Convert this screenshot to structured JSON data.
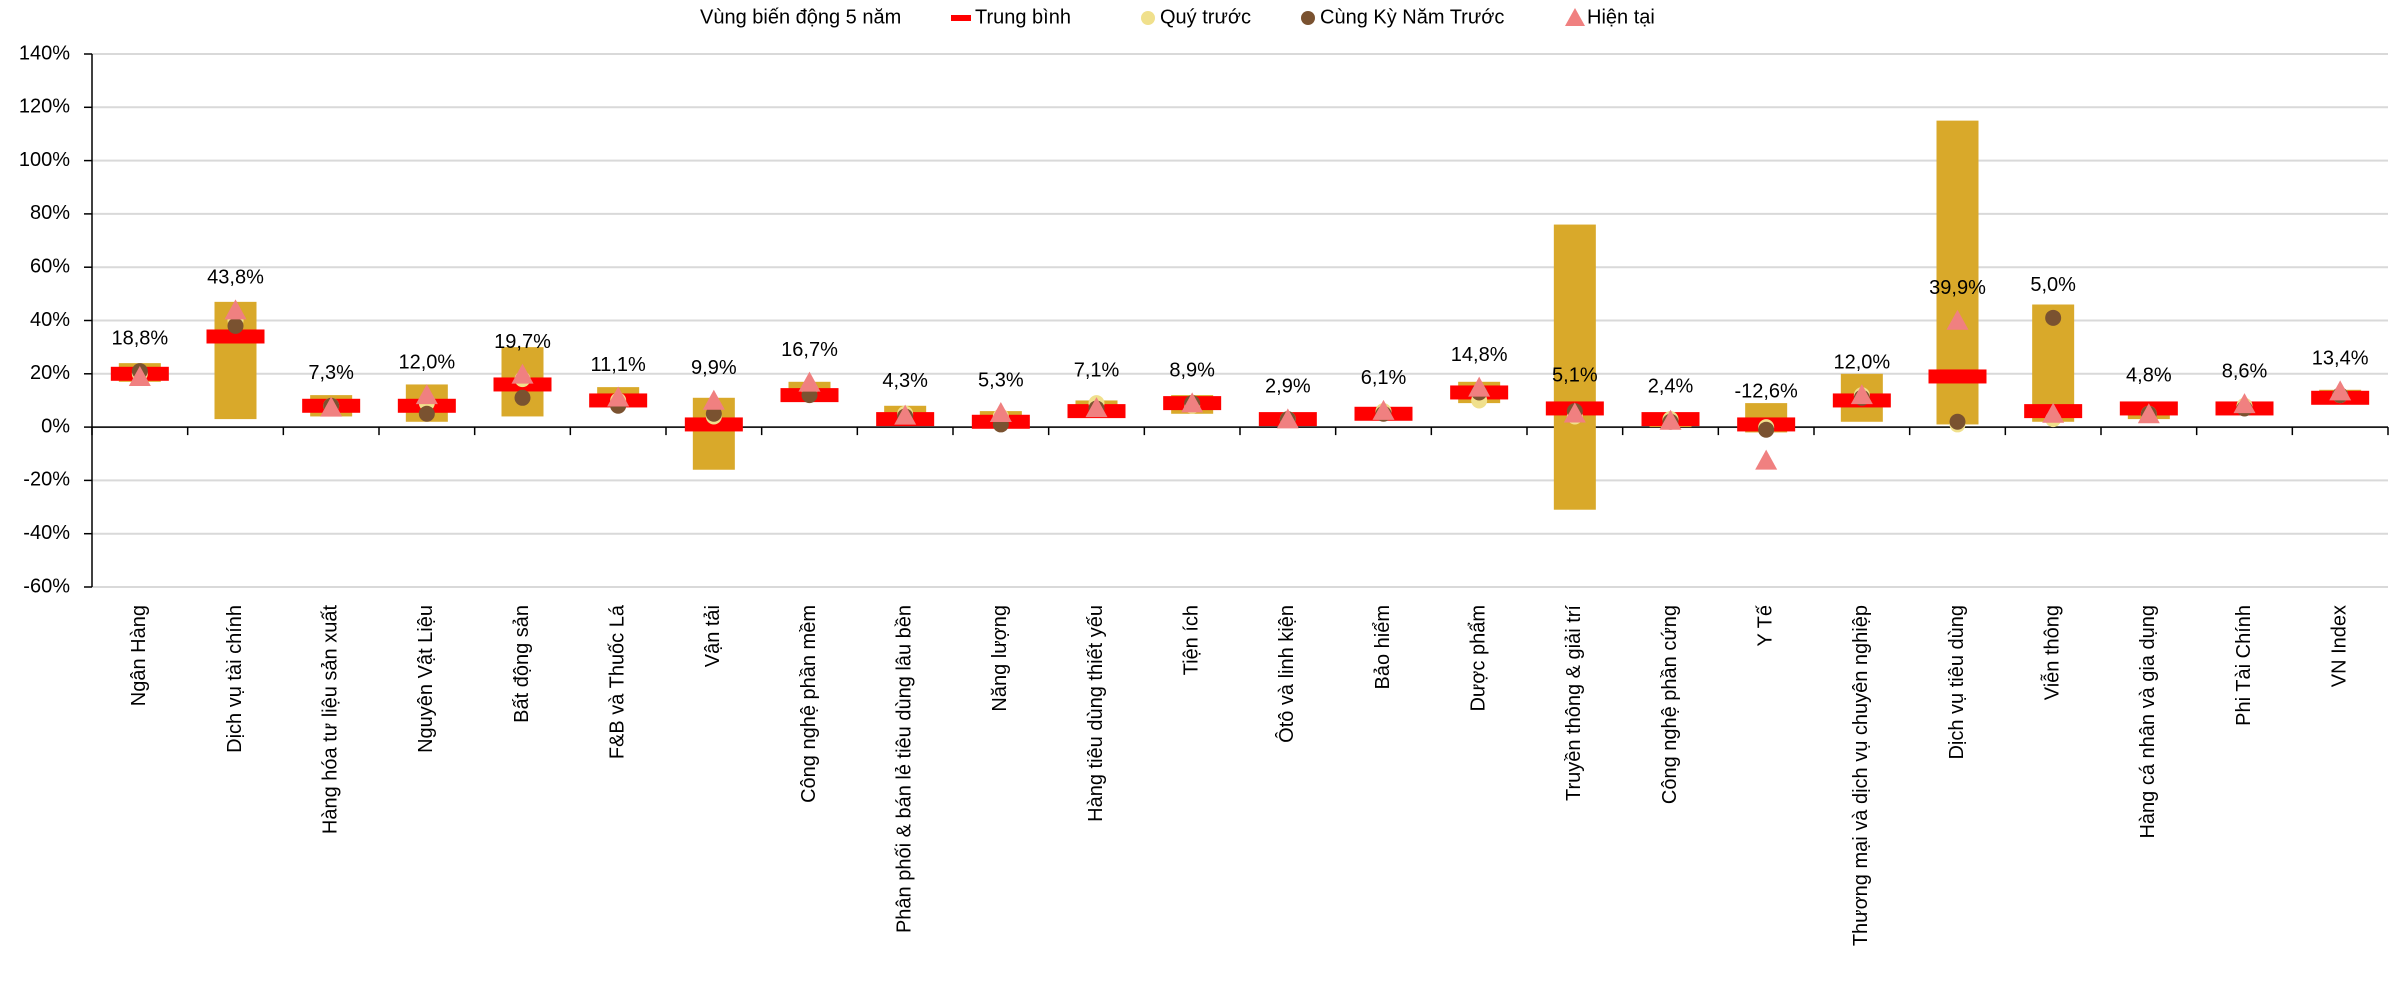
{
  "chart_data": {
    "type": "range-bar",
    "categories": [
      "Ngân Hàng",
      "Dịch vụ tài chính",
      "Hàng hóa tư liệu sản xuất",
      "Nguyên Vật Liệu",
      "Bất động sản",
      "F&B và Thuốc Lá",
      "Vận tải",
      "Công nghệ phần mềm",
      "Phân phối & bán lẻ tiêu dùng lâu bền",
      "Năng lượng",
      "Hàng tiêu dùng thiết yếu",
      "Tiện ích",
      "Ôtô và linh kiện",
      "Bảo hiểm",
      "Dược phẩm",
      "Truyền thông & giải trí",
      "Công nghệ phần cứng",
      "Y Tế",
      "Thương mại và dịch vụ chuyên nghiệp",
      "Dịch vụ tiêu dùng",
      "Viễn thông",
      "Hàng cá nhân và gia dụng",
      "Phi Tài Chính",
      "VN Index"
    ],
    "range": {
      "name": "Vùng biến động 5 năm",
      "color": "#d9a92a",
      "low": [
        17,
        3,
        4,
        2,
        4,
        8,
        -16,
        10,
        1,
        0,
        5,
        5,
        2,
        3,
        9,
        -31,
        0,
        -2,
        2,
        1,
        2,
        3,
        5,
        9
      ],
      "high": [
        24,
        47,
        12,
        16,
        30,
        15,
        11,
        17,
        8,
        6,
        10,
        12,
        5,
        7,
        17,
        76,
        5,
        9,
        20,
        115,
        46,
        9,
        9,
        14
      ]
    },
    "series": [
      {
        "name": "Trung bình",
        "color": "#ff0000",
        "marker": "dash",
        "values": [
          20,
          34,
          8,
          8,
          16,
          10,
          1,
          12,
          3,
          2,
          6,
          9,
          3,
          5,
          13,
          7,
          3,
          1,
          10,
          19,
          6,
          7,
          7,
          11
        ]
      },
      {
        "name": "Quý trước",
        "color": "#f0e08c",
        "marker": "circle",
        "values": [
          20,
          40,
          8,
          9,
          18,
          10,
          4,
          14,
          5,
          4,
          9,
          8,
          3,
          6,
          10,
          4,
          3,
          0,
          12,
          1,
          3,
          5,
          8,
          12
        ]
      },
      {
        "name": "Cùng Kỳ Năm Trước",
        "color": "#7a5230",
        "marker": "circle",
        "values": [
          21,
          38,
          8,
          5,
          11,
          8,
          5,
          12,
          4,
          1,
          7,
          9,
          3,
          5,
          13,
          6,
          2,
          -1,
          11,
          2,
          41,
          5,
          7,
          12
        ]
      },
      {
        "name": "Hiện tại",
        "color": "#f08080",
        "marker": "triangle",
        "values": [
          18.8,
          43.8,
          7.3,
          12.0,
          19.7,
          11.1,
          9.9,
          16.7,
          4.3,
          5.3,
          7.1,
          8.9,
          2.9,
          6.1,
          14.8,
          5.1,
          2.4,
          -12.6,
          12.0,
          39.9,
          5.0,
          4.8,
          8.6,
          13.4
        ],
        "value_labels": [
          "18,8%",
          "43,8%",
          "7,3%",
          "12,0%",
          "19,7%",
          "11,1%",
          "9,9%",
          "16,7%",
          "4,3%",
          "5,3%",
          "7,1%",
          "8,9%",
          "2,9%",
          "6,1%",
          "14,8%",
          "5,1%",
          "2,4%",
          "-12,6%",
          "12,0%",
          "39,9%",
          "5,0%",
          "4,8%",
          "8,6%",
          "13,4%"
        ]
      }
    ],
    "ylim": [
      -60,
      140
    ],
    "yticks": [
      {
        "value": -60,
        "label": "-60%"
      },
      {
        "value": -40,
        "label": "-40%"
      },
      {
        "value": -20,
        "label": "-20%"
      },
      {
        "value": 0,
        "label": "0%"
      },
      {
        "value": 20,
        "label": "20%"
      },
      {
        "value": 40,
        "label": "40%"
      },
      {
        "value": 60,
        "label": "60%"
      },
      {
        "value": 80,
        "label": "80%"
      },
      {
        "value": 100,
        "label": "100%"
      },
      {
        "value": 120,
        "label": "120%"
      },
      {
        "value": 140,
        "label": "140%"
      }
    ],
    "grid": true,
    "legend": "top"
  }
}
